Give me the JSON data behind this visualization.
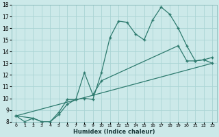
{
  "xlabel": "Humidex (Indice chaleur)",
  "xlim": [
    -0.5,
    23.5
  ],
  "ylim": [
    8,
    18
  ],
  "yticks": [
    8,
    9,
    10,
    11,
    12,
    13,
    14,
    15,
    16,
    17,
    18
  ],
  "xticks": [
    0,
    1,
    2,
    3,
    4,
    5,
    6,
    7,
    8,
    9,
    10,
    11,
    12,
    13,
    14,
    15,
    16,
    17,
    18,
    19,
    20,
    21,
    22,
    23
  ],
  "bg_color": "#cce9e9",
  "grid_color": "#aad4d4",
  "line_color": "#2d7a6e",
  "line1_x": [
    0,
    1,
    2,
    3,
    4,
    5,
    6,
    7,
    8,
    9,
    10,
    11,
    12,
    13,
    14,
    15,
    16,
    17,
    18,
    19,
    20,
    21,
    22,
    23
  ],
  "line1_y": [
    8.5,
    8.0,
    8.3,
    8.0,
    8.0,
    8.8,
    9.9,
    9.9,
    10.0,
    9.9,
    12.2,
    15.2,
    16.6,
    16.5,
    15.5,
    15.0,
    16.7,
    17.8,
    17.2,
    16.0,
    14.5,
    13.2,
    13.3,
    13.5
  ],
  "line2_x": [
    0,
    2,
    3,
    4,
    5,
    6,
    7,
    8,
    9,
    10,
    19,
    20,
    21,
    22,
    23
  ],
  "line2_y": [
    8.5,
    8.3,
    8.0,
    8.0,
    8.6,
    9.5,
    9.9,
    12.2,
    10.3,
    11.5,
    14.5,
    13.2,
    13.2,
    13.3,
    13.0
  ],
  "line3_x": [
    0,
    23
  ],
  "line3_y": [
    8.5,
    13.0
  ]
}
